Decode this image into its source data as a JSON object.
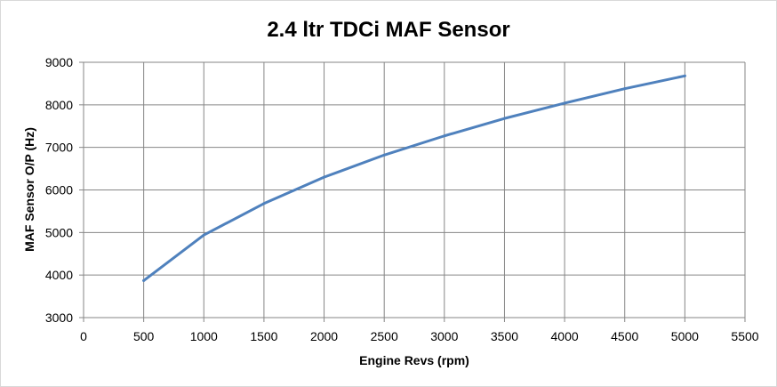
{
  "chart_data": {
    "type": "line",
    "title": "2.4 ltr TDCi MAF Sensor",
    "xlabel": "Engine Revs (rpm)",
    "ylabel": "MAF Sensor O/P (Hz)",
    "xlim": [
      0,
      5500
    ],
    "ylim": [
      3000,
      9000
    ],
    "x_ticks": [
      0,
      500,
      1000,
      1500,
      2000,
      2500,
      3000,
      3500,
      4000,
      4500,
      5000,
      5500
    ],
    "y_ticks": [
      3000,
      4000,
      5000,
      6000,
      7000,
      8000,
      9000
    ],
    "grid": true,
    "legend": "none",
    "series": [
      {
        "color": "#4f81bd",
        "x": [
          500,
          1000,
          1500,
          2000,
          2500,
          3000,
          3500,
          4000,
          4500,
          5000
        ],
        "y": [
          3870,
          4940,
          5680,
          6300,
          6820,
          7270,
          7680,
          8040,
          8380,
          8680
        ]
      }
    ],
    "colors": {
      "grid": "#868686",
      "axis": "#868686",
      "line": "#4f81bd"
    }
  }
}
